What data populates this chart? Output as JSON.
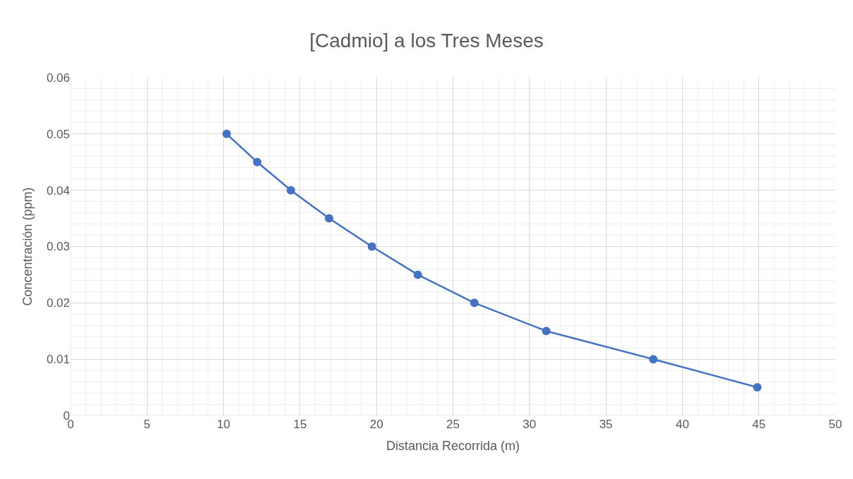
{
  "chart_data": {
    "type": "line",
    "title": "[Cadmio] a los Tres Meses",
    "xlabel": "Distancia Recorrida (m)",
    "ylabel": "Concentración (ppm)",
    "x": [
      10.2,
      12.2,
      14.4,
      16.9,
      19.7,
      22.7,
      26.4,
      31.1,
      38.1,
      44.9
    ],
    "series": [
      {
        "color": "#4472c4",
        "values": [
          0.05,
          0.045,
          0.04,
          0.035,
          0.03,
          0.025,
          0.02,
          0.015,
          0.01,
          0.005
        ]
      }
    ],
    "xlim": [
      0,
      50
    ],
    "xticks": [
      0,
      5,
      10,
      15,
      20,
      25,
      30,
      35,
      40,
      45,
      50
    ],
    "ylim": [
      0,
      0.06
    ],
    "yticks": [
      0,
      0.01,
      0.02,
      0.03,
      0.04,
      0.05,
      0.06
    ],
    "grid": true,
    "marker": "circle",
    "line_style": "solid",
    "legend": false
  }
}
